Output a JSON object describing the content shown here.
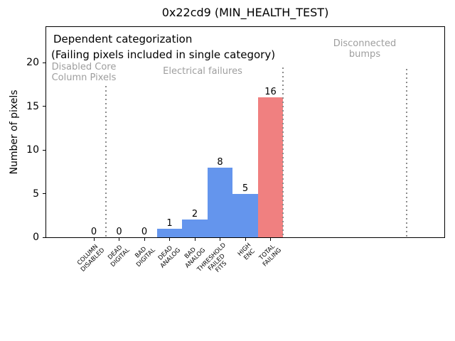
{
  "colors": {
    "bar_default": "#6495ed",
    "bar_total": "#f08080",
    "section_text": "#9e9e9e",
    "divider": "#8c8c8c",
    "axis": "#000000"
  },
  "chart_data": {
    "type": "bar",
    "title": "0x22cd9 (MIN_HEALTH_TEST)",
    "ylabel": "Number of pixels",
    "xlabel": "",
    "categories": [
      "COLUMN\nDISABLED",
      "DEAD\nDIGITAL",
      "BAD\nDIGITAL",
      "DEAD\nANALOG",
      "BAD\nANALOG",
      "THRESHOLD\nFAILED\nFITS",
      "HIGH\nENC",
      "TOTAL\nFAILING"
    ],
    "values": [
      0,
      0,
      0,
      1,
      2,
      8,
      5,
      16
    ],
    "value_labels": [
      "0",
      "0",
      "0",
      "1",
      "2",
      "8",
      "5",
      "16"
    ],
    "bar_colors": [
      "#6495ed",
      "#6495ed",
      "#6495ed",
      "#6495ed",
      "#6495ed",
      "#6495ed",
      "#6495ed",
      "#f08080"
    ],
    "yticks": [
      0,
      5,
      10,
      15,
      20
    ],
    "ylim": [
      0,
      24
    ],
    "grid": false,
    "legend": null,
    "annotations": {
      "heading_line1": "Dependent categorization",
      "heading_line2": "(Failing pixels included in single category)",
      "section_labels": [
        "Disabled Core\nColumn Pixels",
        "Electrical failures",
        "Disconnected\nbumps"
      ]
    }
  }
}
